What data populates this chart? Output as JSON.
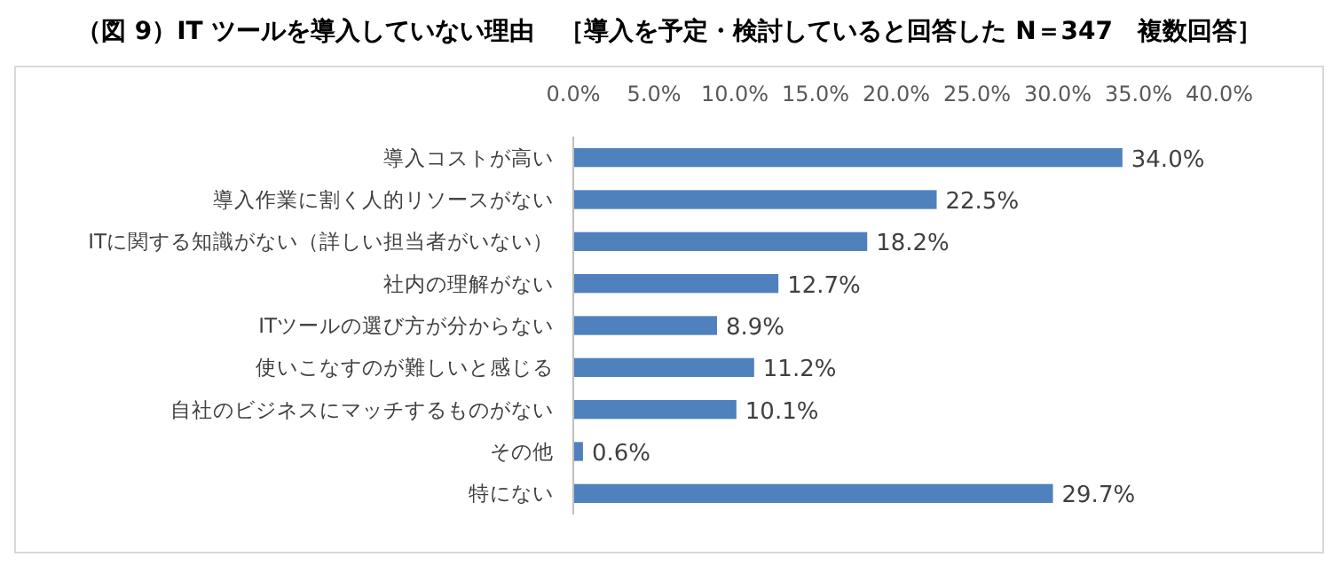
{
  "chart_data": {
    "type": "bar",
    "orientation": "horizontal",
    "title": "（図 9）IT ツールを導入していない理由　［導入を予定・検討していると回答した N＝347　複数回答］",
    "categories": [
      "導入コストが高い",
      "導入作業に割く人的リソースがない",
      "ITに関する知識がない（詳しい担当者がいない）",
      "社内の理解がない",
      "ITツールの選び方が分からない",
      "使いこなすのが難しいと感じる",
      "自社のビジネスにマッチするものがない",
      "その他",
      "特にない"
    ],
    "values": [
      34.0,
      22.5,
      18.2,
      12.7,
      8.9,
      11.2,
      10.1,
      0.6,
      29.7
    ],
    "value_labels": [
      "34.0%",
      "22.5%",
      "18.2%",
      "12.7%",
      "8.9%",
      "11.2%",
      "10.1%",
      "0.6%",
      "29.7%"
    ],
    "color": "#4f81bd",
    "xlim": [
      0,
      40
    ],
    "xticks": [
      {
        "value": 0,
        "label": "0.0%"
      },
      {
        "value": 5,
        "label": "5.0%"
      },
      {
        "value": 10,
        "label": "10.0%"
      },
      {
        "value": 15,
        "label": "15.0%"
      },
      {
        "value": 20,
        "label": "20.0%"
      },
      {
        "value": 25,
        "label": "25.0%"
      },
      {
        "value": 30,
        "label": "30.0%"
      },
      {
        "value": 35,
        "label": "35.0%"
      },
      {
        "value": 40,
        "label": "40.0%"
      }
    ],
    "grid": false
  }
}
